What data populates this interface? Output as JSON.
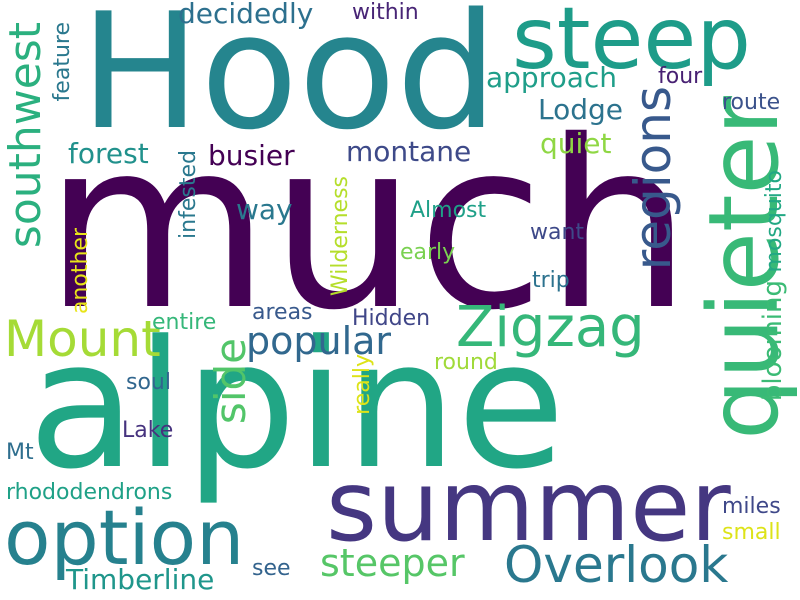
{
  "words": [
    {
      "text": "much",
      "color": "#440154"
    },
    {
      "text": "alpine",
      "color": "#21A685"
    },
    {
      "text": "Hood",
      "color": "#25858E"
    },
    {
      "text": "summer",
      "color": "#453781"
    },
    {
      "text": "steep",
      "color": "#1E9C89"
    },
    {
      "text": "quieter",
      "color": "#38B977"
    },
    {
      "text": "option",
      "color": "#26818E"
    },
    {
      "text": "Zigzag",
      "color": "#35B779"
    },
    {
      "text": "Overlook",
      "color": "#2A788E"
    },
    {
      "text": "regions",
      "color": "#38598C"
    },
    {
      "text": "Mount",
      "color": "#A5DB36"
    },
    {
      "text": "southwest",
      "color": "#2BB07F"
    },
    {
      "text": "side",
      "color": "#52C569"
    },
    {
      "text": "popular",
      "color": "#31688E"
    },
    {
      "text": "steeper",
      "color": "#56C667"
    },
    {
      "text": "approach",
      "color": "#1F9E89"
    },
    {
      "text": "montane",
      "color": "#3E4A89"
    },
    {
      "text": "busier",
      "color": "#440154"
    },
    {
      "text": "forest",
      "color": "#21918C"
    },
    {
      "text": "Lodge",
      "color": "#2C738E"
    },
    {
      "text": "decidedly",
      "color": "#2D708E"
    },
    {
      "text": "Timberline",
      "color": "#1F968B"
    },
    {
      "text": "way",
      "color": "#2A788E"
    },
    {
      "text": "quiet",
      "color": "#8FD744"
    },
    {
      "text": "blooming",
      "color": "#3BBB75"
    },
    {
      "text": "rhododendrons",
      "color": "#1FA187"
    },
    {
      "text": "infested",
      "color": "#2A788E"
    },
    {
      "text": "mosquito",
      "color": "#22A884"
    },
    {
      "text": "Wilderness",
      "color": "#B5DE2B"
    },
    {
      "text": "Almost",
      "color": "#1FA088"
    },
    {
      "text": "four",
      "color": "#482173"
    },
    {
      "text": "route",
      "color": "#3B528B"
    },
    {
      "text": "early",
      "color": "#7AD151"
    },
    {
      "text": "want",
      "color": "#3E4989"
    },
    {
      "text": "Hidden",
      "color": "#404688"
    },
    {
      "text": "trip",
      "color": "#2C728E"
    },
    {
      "text": "areas",
      "color": "#38598C"
    },
    {
      "text": "entire",
      "color": "#35B779"
    },
    {
      "text": "another",
      "color": "#E8E419"
    },
    {
      "text": "feature",
      "color": "#2A788E"
    },
    {
      "text": "within",
      "color": "#482576"
    },
    {
      "text": "soul",
      "color": "#31668E"
    },
    {
      "text": "round",
      "color": "#A0DA39"
    },
    {
      "text": "really",
      "color": "#DDE318"
    },
    {
      "text": "Lake",
      "color": "#46327E"
    },
    {
      "text": "Mt",
      "color": "#2E6E8E"
    },
    {
      "text": "see",
      "color": "#33638D"
    },
    {
      "text": "miles",
      "color": "#3F4889"
    },
    {
      "text": "small",
      "color": "#DDE318"
    }
  ]
}
